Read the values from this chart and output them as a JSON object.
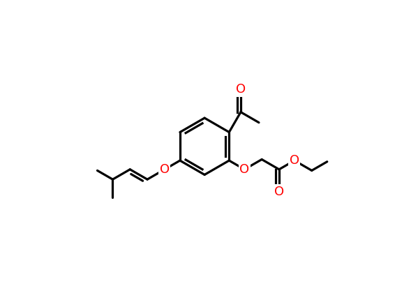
{
  "bg_color": "#ffffff",
  "bond_color": "#000000",
  "oxygen_color": "#ff0000",
  "lw": 2.3,
  "figsize": [
    5.99,
    4.2
  ],
  "dpi": 100,
  "xlim": [
    0,
    10
  ],
  "ylim": [
    0,
    7
  ]
}
